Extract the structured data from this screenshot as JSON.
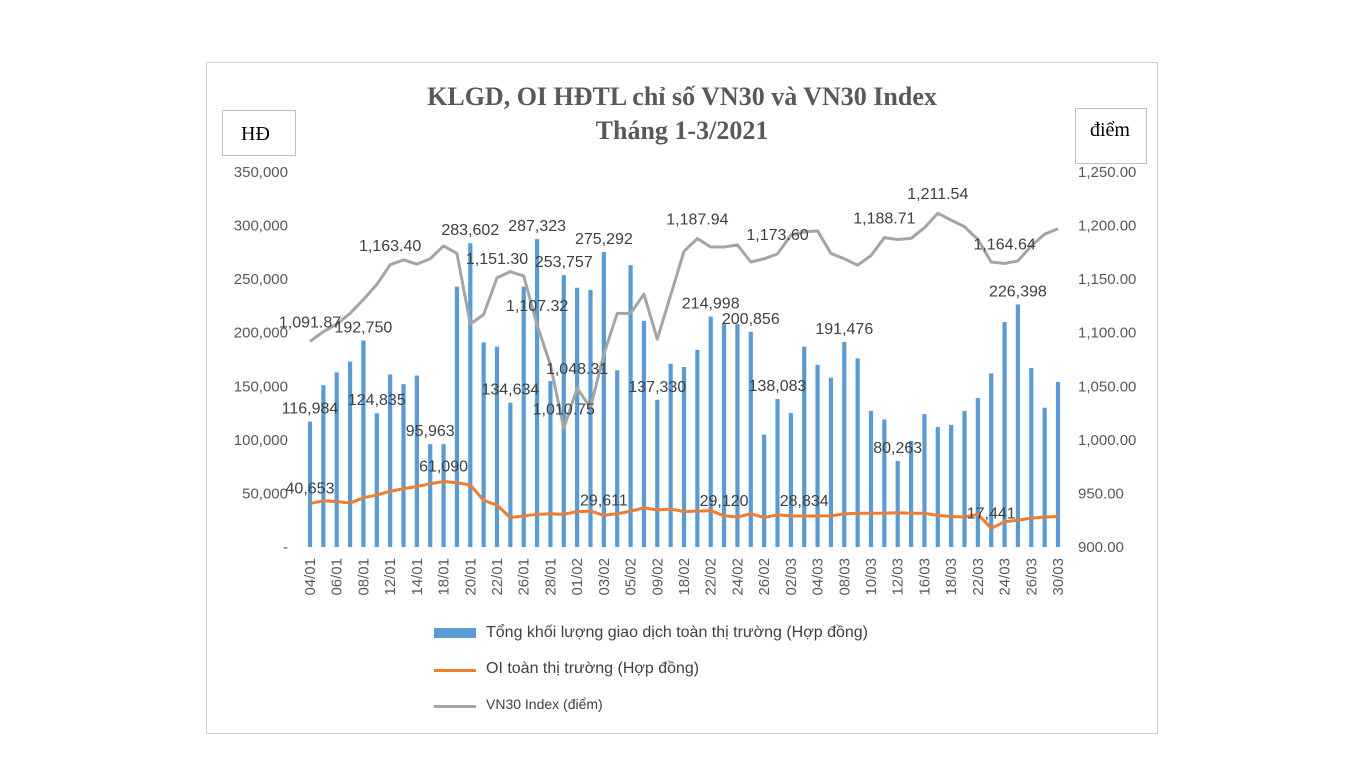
{
  "chart_data": {
    "type": "bar",
    "title": "KLGD, OI HĐTL chỉ số VN30 và VN30 Index",
    "subtitle": "Tháng 1-3/2021",
    "unit_left": "HĐ",
    "unit_right": "điểm",
    "ylim_left": [
      0,
      350000
    ],
    "ylim_right": [
      900,
      1250
    ],
    "y_ticks_left": [
      "-",
      "50,000",
      "100,000",
      "150,000",
      "200,000",
      "250,000",
      "300,000",
      "350,000"
    ],
    "y_ticks_right": [
      "900.00",
      "950.00",
      "1,000.00",
      "1,050.00",
      "1,100.00",
      "1,150.00",
      "1,200.00",
      "1,250.00"
    ],
    "x_tick_labels": [
      "04/01",
      "06/01",
      "08/01",
      "12/01",
      "14/01",
      "18/01",
      "20/01",
      "22/01",
      "26/01",
      "28/01",
      "01/02",
      "03/02",
      "05/02",
      "09/02",
      "18/02",
      "22/02",
      "24/02",
      "26/02",
      "02/03",
      "04/03",
      "08/03",
      "10/03",
      "12/03",
      "16/03",
      "18/03",
      "22/03",
      "24/03",
      "26/03",
      "30/03"
    ],
    "series": [
      {
        "name": "Tổng khối lượng giao dịch toàn thị trường (Hợp đồng)",
        "type": "bar",
        "axis": "left",
        "color": "#5b9bd5",
        "values": [
          116984,
          151000,
          163000,
          173000,
          192750,
          124835,
          161000,
          152000,
          160000,
          95963,
          96000,
          243000,
          283602,
          191000,
          187000,
          134634,
          243000,
          287323,
          155000,
          253757,
          242000,
          240000,
          275292,
          165000,
          263000,
          211000,
          137330,
          171000,
          168000,
          184000,
          214998,
          209000,
          208000,
          200856,
          105000,
          138083,
          125000,
          187000,
          170000,
          158000,
          191476,
          176000,
          127000,
          119000,
          80263,
          99000,
          124000,
          112000,
          114000,
          127000,
          139000,
          162000,
          210000,
          226398,
          167000,
          130000,
          154000
        ]
      },
      {
        "name": "OI toàn thị trường (Hợp đồng)",
        "type": "line",
        "axis": "left",
        "color": "#ed7d31",
        "values": [
          40653,
          43000,
          42500,
          41000,
          46000,
          48500,
          52000,
          54500,
          56500,
          59000,
          61090,
          60000,
          58000,
          43500,
          39000,
          27500,
          29000,
          30500,
          31000,
          30500,
          33000,
          33500,
          29611,
          31000,
          33500,
          36500,
          34500,
          35500,
          33000,
          33500,
          34000,
          29120,
          28000,
          31000,
          27500,
          30000,
          29000,
          28834,
          29000,
          29000,
          31000,
          31500,
          31500,
          31500,
          32000,
          31500,
          31500,
          29500,
          28500,
          28000,
          30500,
          17441,
          23500,
          25000,
          27000,
          28000,
          28500
        ]
      },
      {
        "name": "VN30 Index (điểm)",
        "type": "line",
        "axis": "right",
        "color": "#a5a5a5",
        "values": [
          1091.87,
          1101,
          1108,
          1118,
          1131,
          1145,
          1163.4,
          1168,
          1164,
          1169,
          1181,
          1174,
          1108,
          1117,
          1151.3,
          1157,
          1153,
          1107.32,
          1070,
          1010.75,
          1048.31,
          1030,
          1080,
          1118,
          1118,
          1136,
          1094,
          1135,
          1176,
          1187.94,
          1180,
          1180,
          1182,
          1166,
          1169,
          1173.6,
          1191,
          1194,
          1195,
          1174,
          1169,
          1163,
          1172,
          1188.71,
          1187,
          1188,
          1198,
          1211.54,
          1205,
          1199,
          1187,
          1166,
          1164.64,
          1167,
          1181,
          1192,
          1197
        ]
      }
    ],
    "data_labels": {
      "volume": [
        "116,984",
        "192,750",
        "124,835",
        "95,963",
        "283,602",
        "134,634",
        "287,323",
        "253,757",
        "275,292",
        "137,330",
        "214,998",
        "200,856",
        "138,083",
        "191,476",
        "80,263",
        "226,398"
      ],
      "oi": [
        "40,653",
        "61,090",
        "29,611",
        "29,120",
        "28,834",
        "17,441"
      ],
      "index": [
        "1,091.87",
        "1,163.40",
        "1,151.30",
        "1,107.32",
        "1,048.31",
        "1,010.75",
        "1,187.94",
        "1,173.60",
        "1,188.71",
        "1,211.54",
        "1,164.64"
      ]
    },
    "legend_position": "bottom",
    "grid": false
  }
}
